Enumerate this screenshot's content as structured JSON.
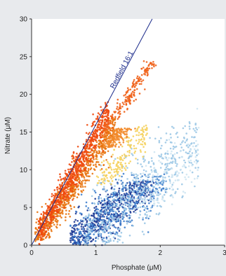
{
  "chart_data": {
    "type": "scatter",
    "title": "",
    "xlabel": "Phosphate (μM)",
    "ylabel": "Nitrate (μM)",
    "xlim": [
      0,
      3
    ],
    "ylim": [
      0,
      30
    ],
    "xticks": [
      "0",
      "1",
      "2",
      "3"
    ],
    "yticks": [
      "0",
      "5",
      "10",
      "15",
      "20",
      "25",
      "30"
    ],
    "grid": false,
    "legend": "none",
    "annotations": [
      {
        "text": "Redfield 16:1",
        "line": {
          "x": [
            0,
            1.875
          ],
          "y": [
            0,
            30
          ]
        },
        "color": "#1a2a8a"
      }
    ],
    "colors": {
      "plot_background": "#ffffff",
      "page_background": "#e8eaed",
      "line": "#1a2a8a"
    },
    "series": [
      {
        "cloud": "dark-blue",
        "color": "#1f3c96",
        "x": [
          0.6,
          1.9
        ],
        "y": [
          0,
          8.5
        ],
        "intercept_x": 0.55,
        "slope": 6.7,
        "spread": 0.2,
        "n": 600
      },
      {
        "cloud": "mid-blue",
        "color": "#3f7fcd",
        "x": [
          0.6,
          2.1
        ],
        "y": [
          0,
          9.5
        ],
        "intercept_x": 0.6,
        "slope": 6.5,
        "spread": 0.3,
        "n": 450
      },
      {
        "cloud": "light-blue",
        "color": "#9cc8e6",
        "x": [
          0.8,
          2.6
        ],
        "y": [
          0,
          16.5
        ],
        "intercept_x": 0.75,
        "slope": 7.8,
        "spread": 0.35,
        "n": 650
      },
      {
        "cloud": "pale-blue",
        "color": "#cfe5f2",
        "x": [
          1.1,
          2.6
        ],
        "y": [
          5,
          19
        ],
        "intercept_x": 0.95,
        "slope": 7.8,
        "spread": 0.3,
        "n": 280
      },
      {
        "cloud": "yellow",
        "color": "#f5d25e",
        "x": [
          1.0,
          1.8
        ],
        "y": [
          8,
          16
        ],
        "intercept_x": 0.3,
        "slope": 10.5,
        "spread": 0.12,
        "n": 200
      },
      {
        "cloud": "dark-orange",
        "color": "#e8740f",
        "x": [
          0.05,
          1.3
        ],
        "y": [
          0.5,
          17
        ],
        "intercept_x": 0.02,
        "slope": 12.5,
        "spread": 0.1,
        "n": 800
      },
      {
        "cloud": "red-orange",
        "color": "#ef4a10",
        "x": [
          0.1,
          1.2
        ],
        "y": [
          0,
          19.5
        ],
        "intercept_x": 0.0,
        "slope": 14.8,
        "spread": 0.07,
        "n": 850
      },
      {
        "cloud": "orange-arm",
        "color": "#f0621a",
        "x": [
          1.1,
          1.95
        ],
        "y": [
          14,
          24.5
        ],
        "intercept_x": -0.1,
        "slope": 12.3,
        "spread": 0.06,
        "n": 220
      },
      {
        "cloud": "orange-shelf",
        "color": "#f28a2a",
        "x": [
          1.1,
          1.85
        ],
        "y": [
          13,
          15.5
        ],
        "intercept_x": 0.0,
        "slope": 11.0,
        "spread": 0.09,
        "n": 160
      }
    ]
  }
}
